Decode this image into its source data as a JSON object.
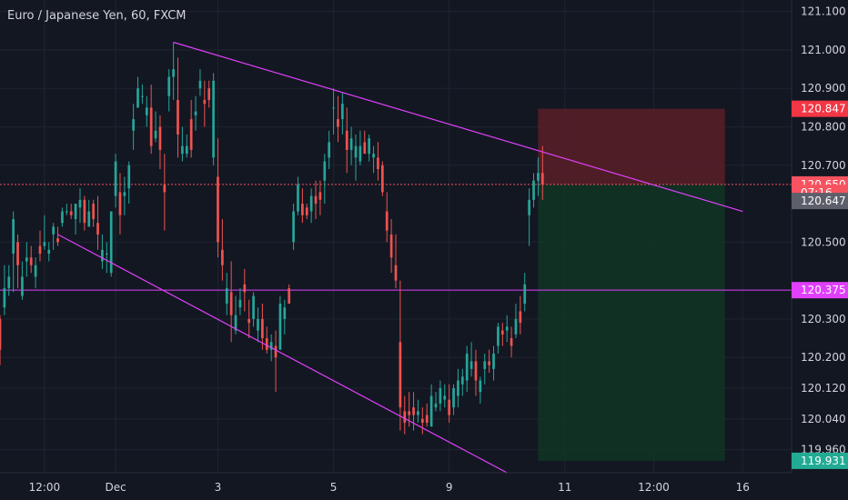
{
  "header": {
    "title": "Euro / Japanese Yen, 60, FXCM"
  },
  "chart_data": {
    "type": "candlestick",
    "symbol": "Euro / Japanese Yen",
    "interval": "60",
    "source": "FXCM",
    "colors": {
      "background": "#131722",
      "up": "#26a69a",
      "down": "#ef5350",
      "grid": "#1f2430",
      "trendline": "#e040fb",
      "text": "#d1d4dc",
      "risk_zone": "#5b1e27",
      "reward_zone": "#123524"
    },
    "y_axis": {
      "ylim": [
        119.9,
        121.13
      ],
      "ticks": [
        "121.100",
        "121.000",
        "120.900",
        "120.800",
        "120.700",
        "120.500",
        "120.300",
        "120.200",
        "120.120",
        "120.040",
        "119.960"
      ]
    },
    "x_axis": {
      "ticks": [
        {
          "label": "12:00",
          "x": 10
        },
        {
          "label": "Dec",
          "x": 26
        },
        {
          "label": "3",
          "x": 49
        },
        {
          "label": "5",
          "x": 75
        },
        {
          "label": "9",
          "x": 101
        },
        {
          "label": "11",
          "x": 127
        },
        {
          "label": "12:00",
          "x": 147
        },
        {
          "label": "16",
          "x": 167
        }
      ],
      "xlim": [
        0,
        178
      ]
    },
    "price_labels": [
      {
        "price": 120.847,
        "text": "120.847",
        "color": "#f23645"
      },
      {
        "price": 120.65,
        "text": "120.650",
        "color": "#f7525f"
      },
      {
        "price": 120.628,
        "text": "07:16",
        "color": "#f7525f"
      },
      {
        "price": 120.607,
        "text": "120.647",
        "color": "#5d606b"
      },
      {
        "price": 120.375,
        "text": "120.375",
        "color": "#e040fb"
      },
      {
        "price": 119.931,
        "text": "119.931",
        "color": "#22ab94"
      }
    ],
    "horizontal_lines": [
      {
        "price": 120.375,
        "style": "solid",
        "color": "#e040fb"
      },
      {
        "price": 120.65,
        "style": "dotted",
        "color": "#f7525f"
      }
    ],
    "trendlines": [
      {
        "x1": 39,
        "y1": 121.02,
        "x2": 167,
        "y2": 120.58
      },
      {
        "x1": 13,
        "y1": 120.52,
        "x2": 114,
        "y2": 119.9
      }
    ],
    "position": {
      "x_start": 121,
      "x_end": 163,
      "entry": 120.65,
      "stop": 120.847,
      "target": 119.931
    },
    "candles": [
      [
        0,
        120.3,
        120.31,
        120.18,
        120.22
      ],
      [
        1,
        120.33,
        120.44,
        120.31,
        120.38
      ],
      [
        2,
        120.38,
        120.44,
        120.36,
        120.41
      ],
      [
        3,
        120.47,
        120.58,
        120.37,
        120.56
      ],
      [
        4,
        120.5,
        120.52,
        120.38,
        120.44
      ],
      [
        5,
        120.36,
        120.45,
        120.35,
        120.41
      ],
      [
        6,
        120.45,
        120.5,
        120.41,
        120.46
      ],
      [
        7,
        120.46,
        120.49,
        120.42,
        120.44
      ],
      [
        8,
        120.41,
        120.46,
        120.38,
        120.44
      ],
      [
        9,
        120.49,
        120.53,
        120.45,
        120.47
      ],
      [
        10,
        120.49,
        120.57,
        120.48,
        120.5
      ],
      [
        11,
        120.47,
        120.5,
        120.45,
        120.48
      ],
      [
        12,
        120.52,
        120.55,
        120.48,
        120.54
      ],
      [
        13,
        120.51,
        120.54,
        120.49,
        120.5
      ],
      [
        14,
        120.55,
        120.59,
        120.54,
        120.58
      ],
      [
        15,
        120.58,
        120.6,
        120.57,
        120.58
      ],
      [
        16,
        120.58,
        120.6,
        120.56,
        120.57
      ],
      [
        17,
        120.56,
        120.6,
        120.52,
        120.6
      ],
      [
        18,
        120.59,
        120.64,
        120.55,
        120.61
      ],
      [
        19,
        120.61,
        120.62,
        120.53,
        120.55
      ],
      [
        20,
        120.54,
        120.61,
        120.54,
        120.58
      ],
      [
        21,
        120.6,
        120.61,
        120.54,
        120.56
      ],
      [
        22,
        120.55,
        120.62,
        120.48,
        120.52
      ],
      [
        23,
        120.45,
        120.52,
        120.43,
        120.48
      ],
      [
        24,
        120.47,
        120.5,
        120.42,
        120.47
      ],
      [
        25,
        120.42,
        120.58,
        120.41,
        120.58
      ],
      [
        26,
        120.62,
        120.73,
        120.59,
        120.71
      ],
      [
        27,
        120.63,
        120.68,
        120.52,
        120.57
      ],
      [
        28,
        120.62,
        120.67,
        120.57,
        120.63
      ],
      [
        29,
        120.64,
        120.71,
        120.6,
        120.7
      ],
      [
        30,
        120.79,
        120.86,
        120.74,
        120.82
      ],
      [
        31,
        120.85,
        120.93,
        120.85,
        120.9
      ],
      [
        32,
        120.88,
        120.91,
        120.86,
        120.88
      ],
      [
        33,
        120.83,
        120.88,
        120.8,
        120.85
      ],
      [
        34,
        120.85,
        120.91,
        120.73,
        120.75
      ],
      [
        35,
        120.77,
        120.84,
        120.76,
        120.79
      ],
      [
        36,
        120.8,
        120.83,
        120.69,
        120.74
      ],
      [
        37,
        120.65,
        120.73,
        120.53,
        120.63
      ],
      [
        38,
        120.88,
        120.95,
        120.84,
        120.93
      ],
      [
        39,
        120.93,
        121.02,
        120.87,
        120.95
      ],
      [
        40,
        120.87,
        120.98,
        120.72,
        120.78
      ],
      [
        41,
        120.73,
        120.8,
        120.71,
        120.75
      ],
      [
        42,
        120.73,
        120.78,
        120.72,
        120.75
      ],
      [
        43,
        120.82,
        120.87,
        120.72,
        120.74
      ],
      [
        44,
        120.83,
        120.88,
        120.79,
        120.84
      ],
      [
        45,
        120.9,
        120.95,
        120.88,
        120.92
      ],
      [
        46,
        120.87,
        120.92,
        120.8,
        120.86
      ],
      [
        47,
        120.9,
        120.92,
        120.85,
        120.87
      ],
      [
        48,
        120.72,
        120.94,
        120.7,
        120.92
      ],
      [
        49,
        120.67,
        120.77,
        120.46,
        120.5
      ],
      [
        50,
        120.48,
        120.56,
        120.4,
        120.44
      ],
      [
        51,
        120.34,
        120.42,
        120.31,
        120.38
      ],
      [
        52,
        120.37,
        120.45,
        120.24,
        120.31
      ],
      [
        53,
        120.27,
        120.36,
        120.26,
        120.31
      ],
      [
        54,
        120.33,
        120.38,
        120.31,
        120.35
      ],
      [
        55,
        120.39,
        120.43,
        120.32,
        120.37
      ],
      [
        56,
        120.3,
        120.35,
        120.25,
        120.29
      ],
      [
        57,
        120.3,
        120.37,
        120.28,
        120.36
      ],
      [
        58,
        120.27,
        120.33,
        120.24,
        120.3
      ],
      [
        59,
        120.3,
        120.34,
        120.22,
        120.25
      ],
      [
        60,
        120.25,
        120.28,
        120.21,
        120.22
      ],
      [
        61,
        120.22,
        120.26,
        120.19,
        120.24
      ],
      [
        62,
        120.23,
        120.27,
        120.11,
        120.2
      ],
      [
        63,
        120.22,
        120.36,
        120.22,
        120.34
      ],
      [
        64,
        120.3,
        120.35,
        120.26,
        120.33
      ],
      [
        65,
        120.38,
        120.39,
        120.34,
        120.34
      ],
      [
        66,
        120.5,
        120.6,
        120.48,
        120.58
      ],
      [
        67,
        120.58,
        120.67,
        120.57,
        120.65
      ],
      [
        68,
        120.6,
        120.64,
        120.55,
        120.57
      ],
      [
        69,
        120.59,
        120.6,
        120.56,
        120.57
      ],
      [
        70,
        120.58,
        120.64,
        120.55,
        120.62
      ],
      [
        71,
        120.62,
        120.66,
        120.56,
        120.6
      ],
      [
        72,
        120.63,
        120.66,
        120.57,
        120.61
      ],
      [
        73,
        120.66,
        120.73,
        120.6,
        120.71
      ],
      [
        74,
        120.72,
        120.79,
        120.69,
        120.76
      ],
      [
        75,
        120.85,
        120.9,
        120.78,
        120.85
      ],
      [
        76,
        120.82,
        120.88,
        120.76,
        120.8
      ],
      [
        77,
        120.82,
        120.89,
        120.78,
        120.86
      ],
      [
        78,
        120.79,
        120.85,
        120.68,
        120.74
      ],
      [
        79,
        120.74,
        120.8,
        120.7,
        120.77
      ],
      [
        80,
        120.72,
        120.78,
        120.66,
        120.75
      ],
      [
        81,
        120.71,
        120.79,
        120.7,
        120.75
      ],
      [
        82,
        120.76,
        120.79,
        120.73,
        120.73
      ],
      [
        83,
        120.73,
        120.78,
        120.71,
        120.77
      ],
      [
        84,
        120.72,
        120.75,
        120.68,
        120.73
      ],
      [
        85,
        120.72,
        120.76,
        120.66,
        120.69
      ],
      [
        86,
        120.7,
        120.71,
        120.62,
        120.63
      ],
      [
        87,
        120.58,
        120.63,
        120.5,
        120.53
      ],
      [
        88,
        120.52,
        120.56,
        120.42,
        120.46
      ],
      [
        89,
        120.44,
        120.52,
        120.38,
        120.4
      ],
      [
        90,
        120.24,
        120.4,
        120.01,
        120.07
      ],
      [
        91,
        120.06,
        120.1,
        120,
        120.03
      ],
      [
        92,
        120.06,
        120.11,
        120.02,
        120.05
      ],
      [
        93,
        120.07,
        120.11,
        120.01,
        120.05
      ],
      [
        94,
        120.05,
        120.09,
        120.03,
        120.06
      ],
      [
        95,
        120.04,
        120.07,
        120,
        120.03
      ],
      [
        96,
        120.05,
        120.08,
        120.02,
        120.03
      ],
      [
        97,
        120.02,
        120.13,
        120.02,
        120.1
      ],
      [
        98,
        120.07,
        120.11,
        120.06,
        120.08
      ],
      [
        99,
        120.08,
        120.14,
        120.06,
        120.12
      ],
      [
        100,
        120.09,
        120.13,
        120.07,
        120.1
      ],
      [
        101,
        120.09,
        120.13,
        120.03,
        120.05
      ],
      [
        102,
        120.07,
        120.13,
        120.05,
        120.12
      ],
      [
        103,
        120.1,
        120.17,
        120.07,
        120.14
      ],
      [
        104,
        120.13,
        120.17,
        120.1,
        120.15
      ],
      [
        105,
        120.14,
        120.23,
        120.11,
        120.21
      ],
      [
        106,
        120.17,
        120.24,
        120.15,
        120.19
      ],
      [
        107,
        120.19,
        120.22,
        120.1,
        120.14
      ],
      [
        108,
        120.11,
        120.15,
        120.08,
        120.14
      ],
      [
        109,
        120.17,
        120.21,
        120.13,
        120.19
      ],
      [
        110,
        120.19,
        120.22,
        120.16,
        120.18
      ],
      [
        111,
        120.17,
        120.23,
        120.14,
        120.21
      ],
      [
        112,
        120.23,
        120.29,
        120.21,
        120.28
      ],
      [
        113,
        120.27,
        120.29,
        120.23,
        120.26
      ],
      [
        114,
        120.27,
        120.31,
        120.24,
        120.28
      ],
      [
        115,
        120.25,
        120.28,
        120.2,
        120.23
      ],
      [
        116,
        120.26,
        120.34,
        120.25,
        120.3
      ],
      [
        117,
        120.32,
        120.36,
        120.26,
        120.29
      ],
      [
        118,
        120.34,
        120.42,
        120.32,
        120.39
      ],
      [
        119,
        120.57,
        120.64,
        120.49,
        120.61
      ],
      [
        120,
        120.61,
        120.68,
        120.59,
        120.66
      ],
      [
        121,
        120.66,
        120.72,
        120.62,
        120.68
      ],
      [
        122,
        120.68,
        120.75,
        120.61,
        120.65
      ]
    ]
  }
}
